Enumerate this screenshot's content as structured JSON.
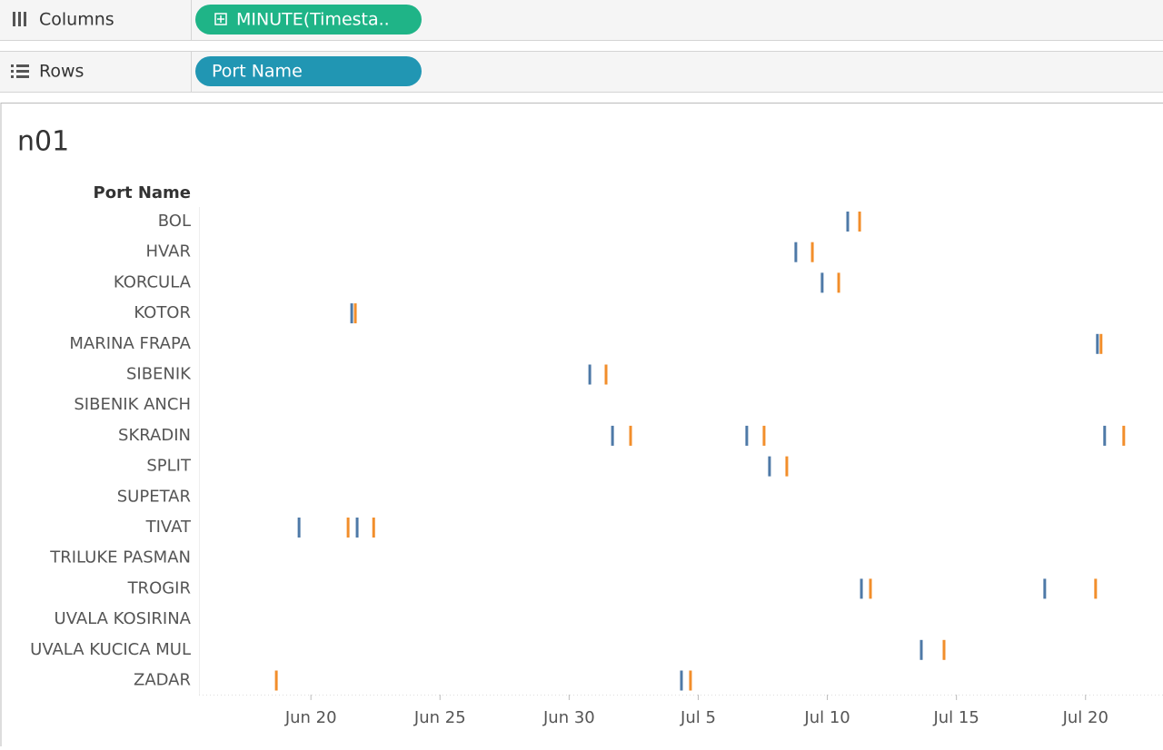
{
  "shelves": {
    "columns": {
      "label": "Columns",
      "pill": "MINUTE(Timesta.."
    },
    "rows": {
      "label": "Rows",
      "pill": "Port Name"
    }
  },
  "chart_data": {
    "type": "strip",
    "title": "n01",
    "row_header": "Port Name",
    "categories": [
      "BOL",
      "HVAR",
      "KORCULA",
      "KOTOR",
      "MARINA FRAPA",
      "SIBENIK",
      "SIBENIK ANCH",
      "SKRADIN",
      "SPLIT",
      "SUPETAR",
      "TIVAT",
      "TRILUKE PASMAN",
      "TROGIR",
      "UVALA KOSIRINA",
      "UVALA KUCICA MUL",
      "ZADAR"
    ],
    "series": [
      {
        "color": "#4e79a7",
        "x": [
          [
            40.79
          ],
          [
            38.78
          ],
          [
            39.8
          ],
          [
            21.58
          ],
          [
            50.46
          ],
          [
            30.8
          ],
          [],
          [
            31.68,
            36.88,
            50.74
          ],
          [
            37.76
          ],
          [],
          [
            19.54,
            21.79
          ],
          [],
          [
            41.32,
            48.42
          ],
          [],
          [
            43.64
          ],
          [
            34.35
          ]
        ]
      },
      {
        "color": "#f28e2b",
        "x": [
          [
            41.25
          ],
          [
            39.42
          ],
          [
            40.44
          ],
          [
            21.72
          ],
          [
            50.6
          ],
          [
            31.43
          ],
          [],
          [
            32.38,
            37.55,
            51.48
          ],
          [
            38.43
          ],
          [],
          [
            21.44,
            22.43
          ],
          [],
          [
            41.67,
            50.39
          ],
          [],
          [
            44.52
          ],
          [
            18.66,
            34.7
          ]
        ]
      }
    ],
    "xlim": [
      15.7,
      53
    ],
    "xticks": [
      {
        "value": 20,
        "label": "Jun 20"
      },
      {
        "value": 25,
        "label": "Jun 25"
      },
      {
        "value": 30,
        "label": "Jun 30"
      },
      {
        "value": 35,
        "label": "Jul 5"
      },
      {
        "value": 40,
        "label": "Jul 10"
      },
      {
        "value": 45,
        "label": "Jul 15"
      },
      {
        "value": 50,
        "label": "Jul 20"
      }
    ]
  }
}
